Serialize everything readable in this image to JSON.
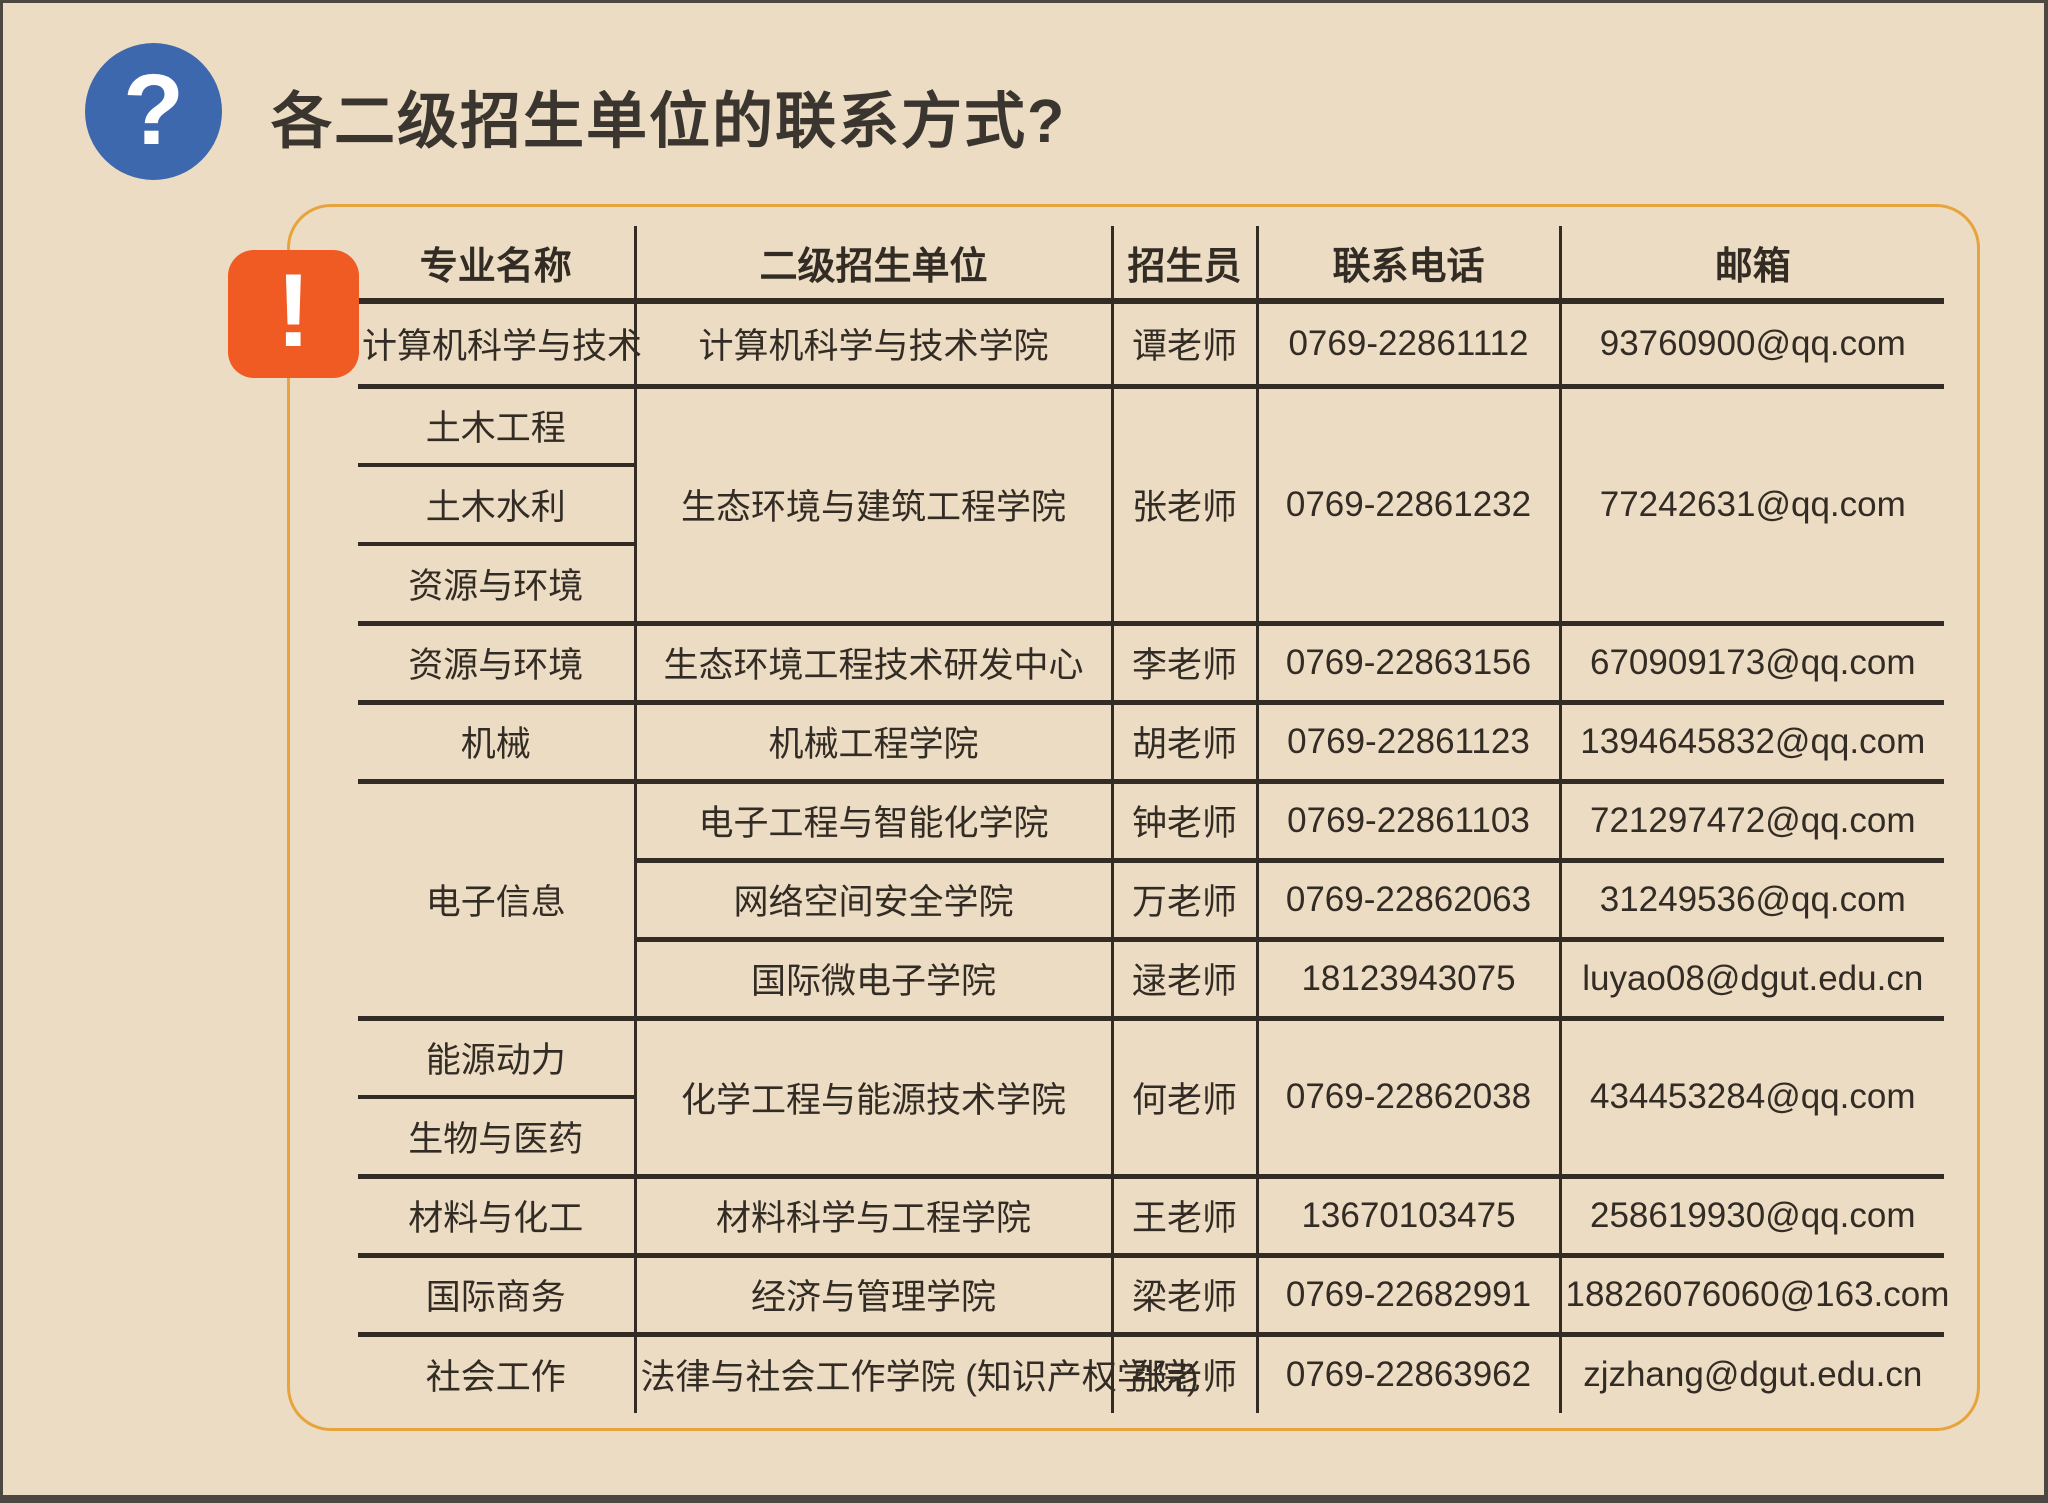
{
  "title": "各二级招生单位的联系方式?",
  "icons": {
    "question": "?",
    "alert": "!"
  },
  "colors": {
    "background": "#ecdcc3",
    "page_edge": "#4c4741",
    "accent_blue": "#3e68ae",
    "accent_orange": "#f05a23",
    "panel_border": "#e7a33c",
    "ink": "#332c25"
  },
  "table": {
    "headers": [
      "专业名称",
      "二级招生单位",
      "招生员",
      "联系电话",
      "邮箱"
    ],
    "rows": [
      {
        "cells": [
          {
            "text": "计算机科学与技术",
            "col": 0,
            "edge": "grp"
          },
          {
            "text": "计算机科学与技术学院",
            "col": 1,
            "edge": "grp"
          },
          {
            "text": "谭老师",
            "col": 2,
            "edge": "grp"
          },
          {
            "text": "0769-22861112",
            "col": 3,
            "edge": "grp"
          },
          {
            "text": "93760900@qq.com",
            "col": 4,
            "edge": "grp"
          }
        ]
      },
      {
        "cells": [
          {
            "text": "土木工程",
            "col": 0,
            "edge": "sub"
          },
          {
            "text": "生态环境与建筑工程学院",
            "col": 1,
            "span": 3,
            "edge": "grp"
          },
          {
            "text": "张老师",
            "col": 2,
            "span": 3,
            "edge": "grp"
          },
          {
            "text": "0769-22861232",
            "col": 3,
            "span": 3,
            "edge": "grp"
          },
          {
            "text": "77242631@qq.com",
            "col": 4,
            "span": 3,
            "edge": "grp"
          }
        ]
      },
      {
        "cells": [
          {
            "text": "土木水利",
            "col": 0,
            "edge": "sub"
          }
        ]
      },
      {
        "cells": [
          {
            "text": "资源与环境",
            "col": 0,
            "edge": "grp"
          }
        ]
      },
      {
        "cells": [
          {
            "text": "资源与环境",
            "col": 0,
            "edge": "grp"
          },
          {
            "text": "生态环境工程技术研发中心",
            "col": 1,
            "edge": "grp"
          },
          {
            "text": "李老师",
            "col": 2,
            "edge": "grp"
          },
          {
            "text": "0769-22863156",
            "col": 3,
            "edge": "grp"
          },
          {
            "text": "670909173@qq.com",
            "col": 4,
            "edge": "grp"
          }
        ]
      },
      {
        "cells": [
          {
            "text": "机械",
            "col": 0,
            "edge": "grp"
          },
          {
            "text": "机械工程学院",
            "col": 1,
            "edge": "grp"
          },
          {
            "text": "胡老师",
            "col": 2,
            "edge": "grp"
          },
          {
            "text": "0769-22861123",
            "col": 3,
            "edge": "grp"
          },
          {
            "text": "1394645832@qq.com",
            "col": 4,
            "edge": "grp"
          }
        ]
      },
      {
        "cells": [
          {
            "text": "电子信息",
            "col": 0,
            "span": 3,
            "edge": "grp"
          },
          {
            "text": "电子工程与智能化学院",
            "col": 1,
            "edge": "grp"
          },
          {
            "text": "钟老师",
            "col": 2,
            "edge": "grp"
          },
          {
            "text": "0769-22861103",
            "col": 3,
            "edge": "grp"
          },
          {
            "text": "721297472@qq.com",
            "col": 4,
            "edge": "grp"
          }
        ]
      },
      {
        "cells": [
          {
            "text": "网络空间安全学院",
            "col": 1,
            "edge": "grp"
          },
          {
            "text": "万老师",
            "col": 2,
            "edge": "grp"
          },
          {
            "text": "0769-22862063",
            "col": 3,
            "edge": "grp"
          },
          {
            "text": "31249536@qq.com",
            "col": 4,
            "edge": "grp"
          }
        ]
      },
      {
        "cells": [
          {
            "text": "国际微电子学院",
            "col": 1,
            "edge": "grp"
          },
          {
            "text": "逯老师",
            "col": 2,
            "edge": "grp"
          },
          {
            "text": "18123943075",
            "col": 3,
            "edge": "grp"
          },
          {
            "text": "luyao08@dgut.edu.cn",
            "col": 4,
            "edge": "grp"
          }
        ]
      },
      {
        "cells": [
          {
            "text": "能源动力",
            "col": 0,
            "edge": "sub"
          },
          {
            "text": "化学工程与能源技术学院",
            "col": 1,
            "span": 2,
            "edge": "grp"
          },
          {
            "text": "何老师",
            "col": 2,
            "span": 2,
            "edge": "grp"
          },
          {
            "text": "0769-22862038",
            "col": 3,
            "span": 2,
            "edge": "grp"
          },
          {
            "text": "434453284@qq.com",
            "col": 4,
            "span": 2,
            "edge": "grp"
          }
        ]
      },
      {
        "cells": [
          {
            "text": "生物与医药",
            "col": 0,
            "edge": "grp"
          }
        ]
      },
      {
        "cells": [
          {
            "text": "材料与化工",
            "col": 0,
            "edge": "grp"
          },
          {
            "text": "材料科学与工程学院",
            "col": 1,
            "edge": "grp"
          },
          {
            "text": "王老师",
            "col": 2,
            "edge": "grp"
          },
          {
            "text": "13670103475",
            "col": 3,
            "edge": "grp"
          },
          {
            "text": "258619930@qq.com",
            "col": 4,
            "edge": "grp"
          }
        ]
      },
      {
        "cells": [
          {
            "text": "国际商务",
            "col": 0,
            "edge": "grp"
          },
          {
            "text": "经济与管理学院",
            "col": 1,
            "edge": "grp"
          },
          {
            "text": "梁老师",
            "col": 2,
            "edge": "grp"
          },
          {
            "text": "0769-22682991",
            "col": 3,
            "edge": "grp"
          },
          {
            "text": "18826076060@163.com",
            "col": 4,
            "edge": "grp"
          }
        ]
      },
      {
        "cells": [
          {
            "text": "社会工作",
            "col": 0
          },
          {
            "text": "法律与社会工作学院 (知识产权学院)",
            "col": 1,
            "small": true
          },
          {
            "text": "张老师",
            "col": 2
          },
          {
            "text": "0769-22863962",
            "col": 3
          },
          {
            "text": "zjzhang@dgut.edu.cn",
            "col": 4
          }
        ]
      }
    ]
  }
}
